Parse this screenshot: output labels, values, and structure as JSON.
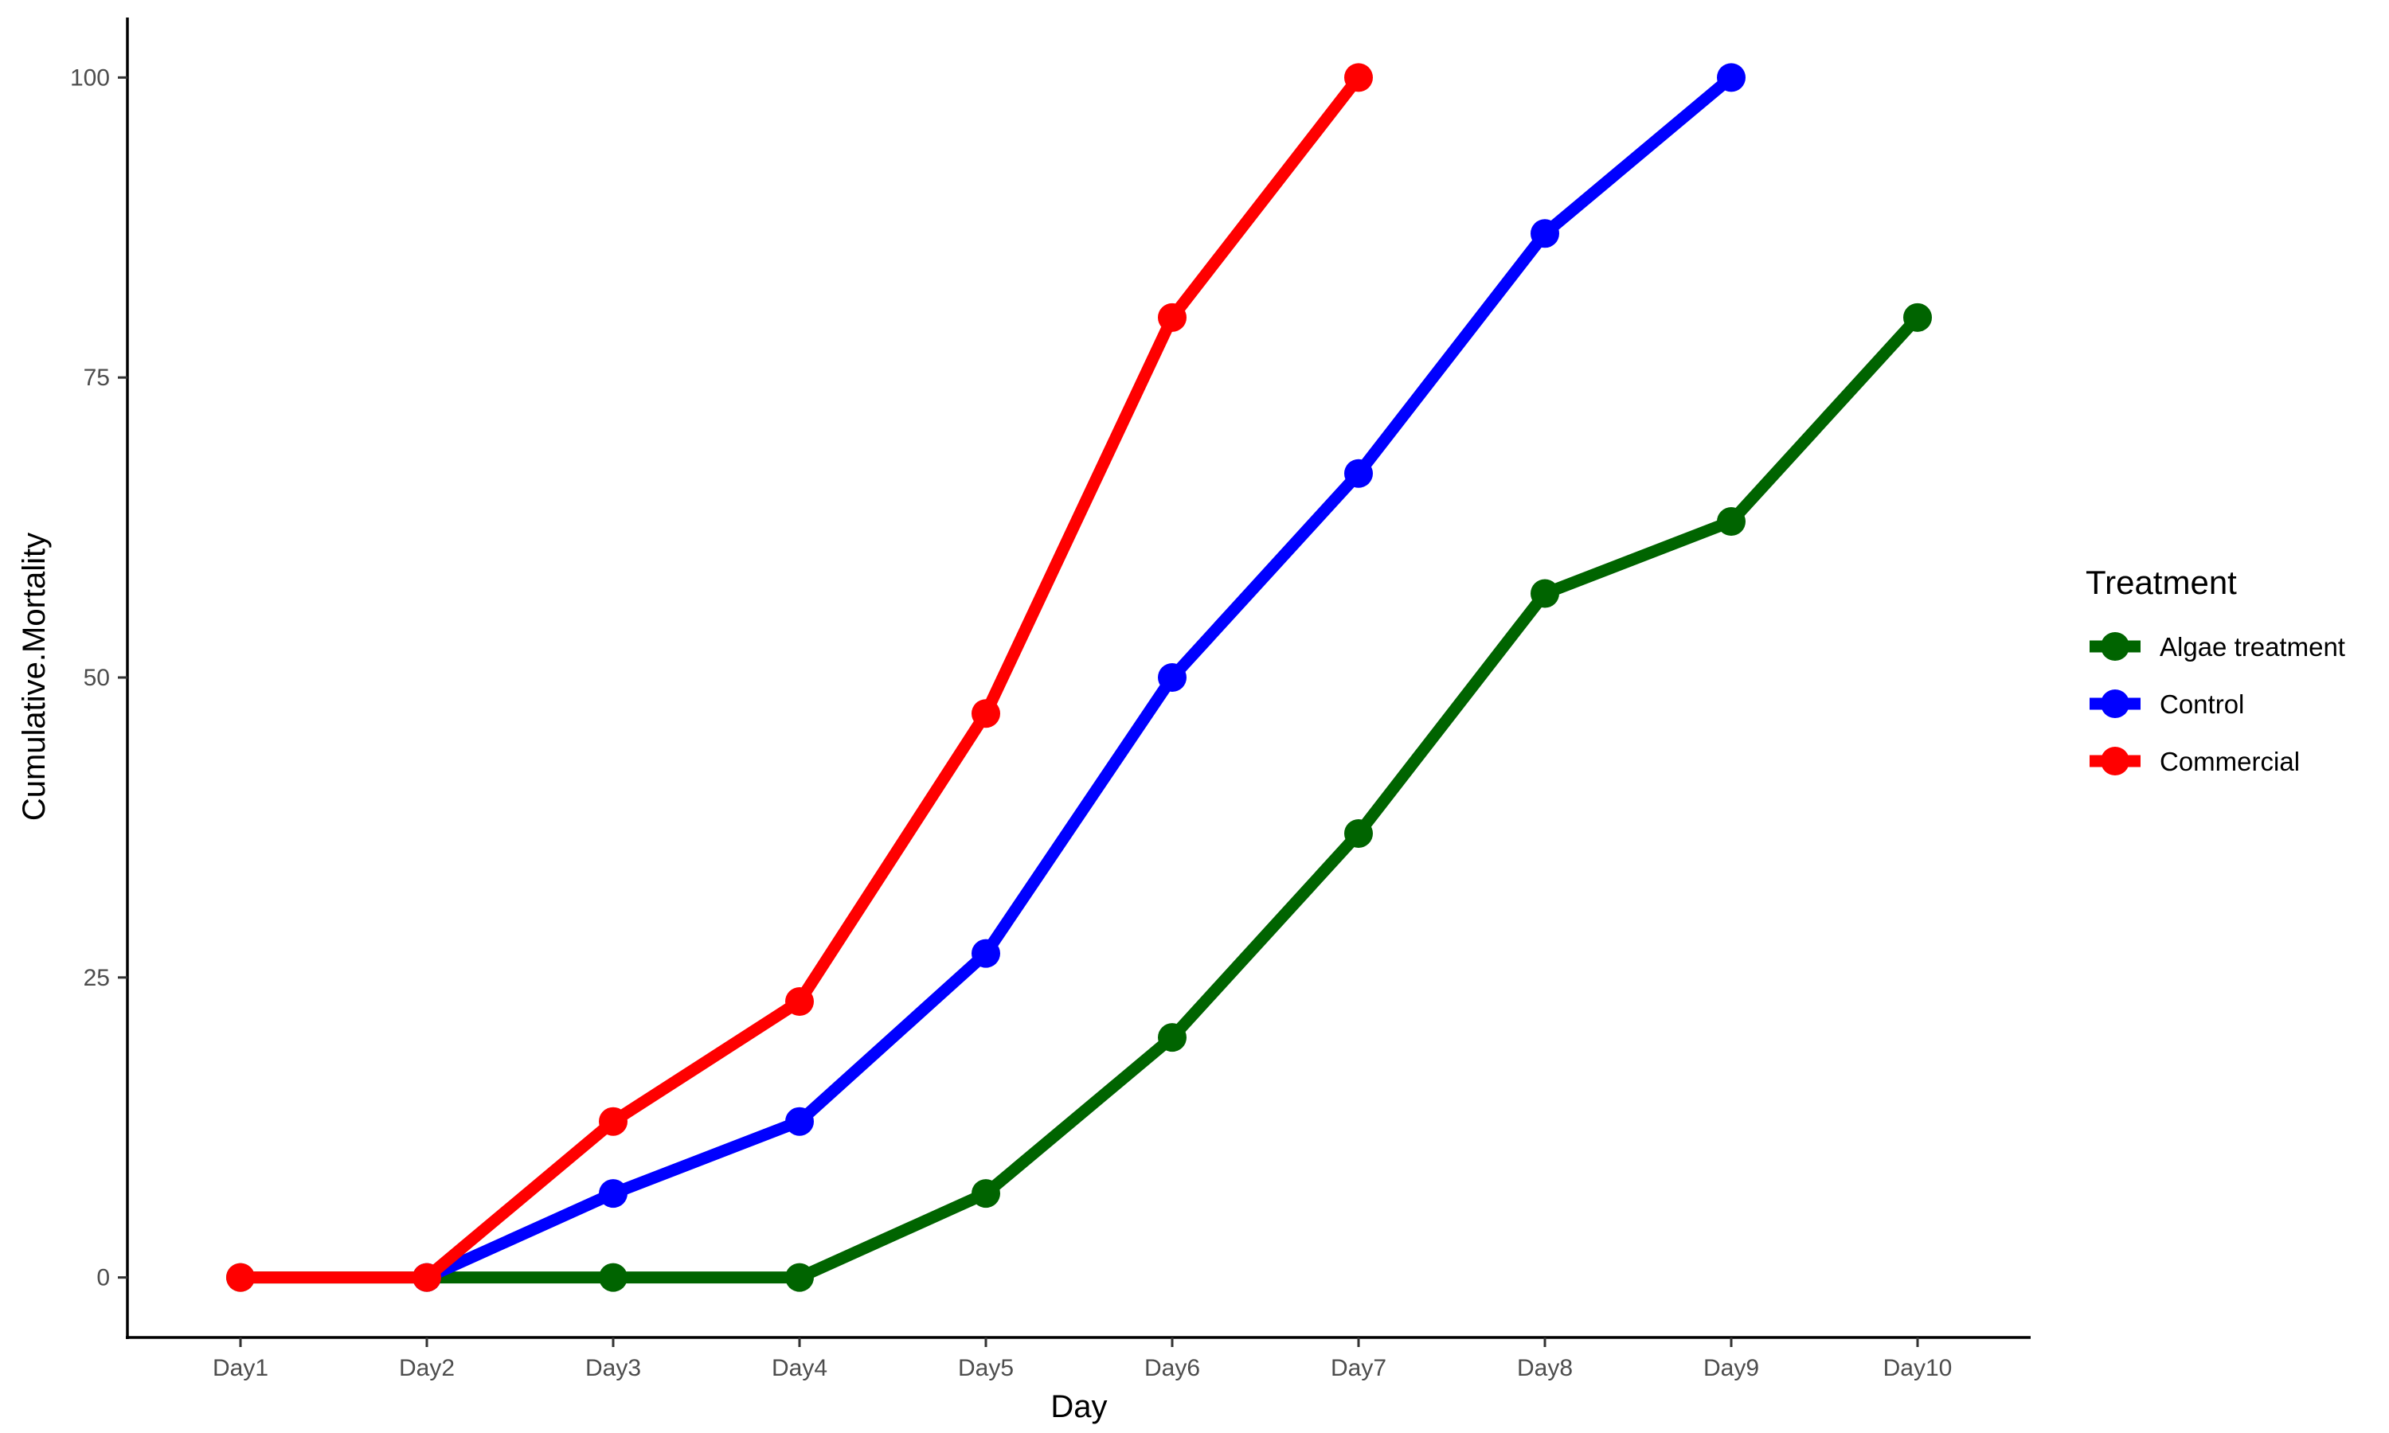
{
  "chart_data": {
    "type": "line",
    "title": "",
    "xlabel": "Day",
    "ylabel": "Cumulative.Mortality",
    "categories": [
      "Day1",
      "Day2",
      "Day3",
      "Day4",
      "Day5",
      "Day6",
      "Day7",
      "Day8",
      "Day9",
      "Day10"
    ],
    "ylim": [
      -5,
      105
    ],
    "yticks": [
      0,
      25,
      50,
      75,
      100
    ],
    "ytick_labels": [
      "0",
      "25",
      "50",
      "75",
      "100"
    ],
    "grid": false,
    "legend": {
      "title": "Treatment",
      "placement": "right"
    },
    "series": [
      {
        "name": "Algae treatment",
        "color": "#006400",
        "values": [
          0,
          0,
          0,
          0,
          7,
          20,
          37,
          57,
          63,
          80
        ]
      },
      {
        "name": "Control",
        "color": "#0000ff",
        "values": [
          null,
          0,
          7,
          13,
          27,
          50,
          67,
          87,
          100,
          null
        ]
      },
      {
        "name": "Commercial",
        "color": "#ff0000",
        "values": [
          0,
          0,
          13,
          23,
          47,
          80,
          100,
          null,
          null,
          null
        ]
      }
    ]
  }
}
